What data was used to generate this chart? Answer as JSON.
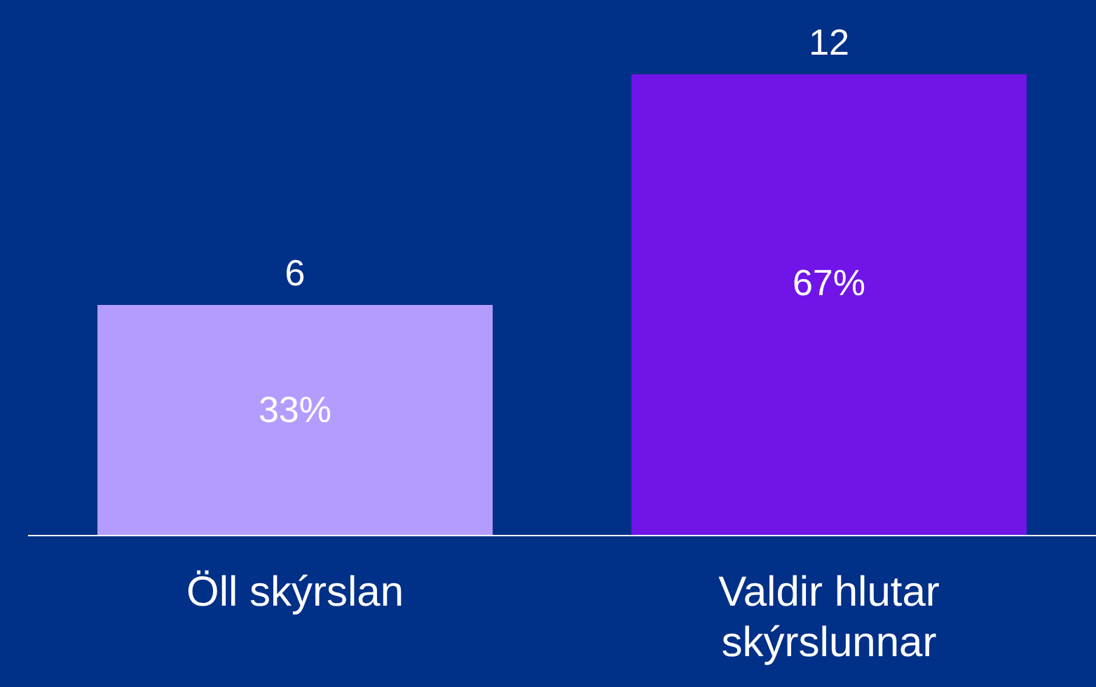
{
  "chart_data": {
    "type": "bar",
    "categories": [
      "Öll skýrslan",
      "Valdir hlutar skýrslunnar"
    ],
    "values": [
      6,
      12
    ],
    "colors": [
      "#b49cff",
      "#7014e8"
    ],
    "data_labels": true,
    "grid": false,
    "legend": false,
    "annotations": [
      "33%",
      "67%"
    ]
  }
}
